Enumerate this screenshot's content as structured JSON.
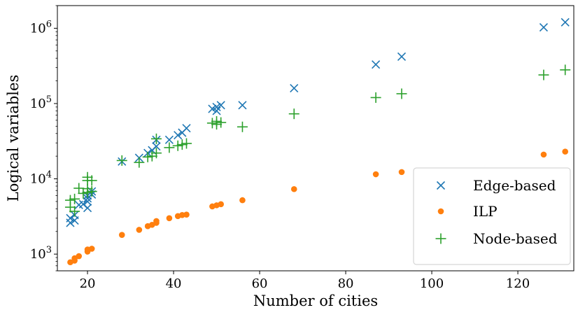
{
  "chart_data": {
    "type": "scatter",
    "xlabel": "Number of cities",
    "ylabel": "Logical variables",
    "xlim": [
      13,
      133
    ],
    "ylim": [
      600,
      2000000
    ],
    "y_scale": "log",
    "grid": false,
    "legend_position": "bottom-right",
    "x_ticks": [
      20,
      40,
      60,
      80,
      100,
      120
    ],
    "x_tick_labels": [
      "20",
      "40",
      "60",
      "80",
      "100",
      "120"
    ],
    "y_ticks": [
      1000,
      10000,
      100000,
      1000000
    ],
    "y_tick_labels": [
      {
        "base": "10",
        "exp": "3"
      },
      {
        "base": "10",
        "exp": "4"
      },
      {
        "base": "10",
        "exp": "5"
      },
      {
        "base": "10",
        "exp": "6"
      }
    ],
    "series": [
      {
        "name": "Edge-based",
        "marker": "x",
        "color": "#1f77b4",
        "points": [
          [
            16,
            2600
          ],
          [
            16,
            3000
          ],
          [
            17,
            2800
          ],
          [
            17,
            3300
          ],
          [
            18,
            4500
          ],
          [
            19,
            4600
          ],
          [
            20,
            4100
          ],
          [
            20,
            5000
          ],
          [
            20,
            5500
          ],
          [
            20,
            6000
          ],
          [
            21,
            6200
          ],
          [
            21,
            6800
          ],
          [
            28,
            17000
          ],
          [
            32,
            19000
          ],
          [
            34,
            22000
          ],
          [
            35,
            24000
          ],
          [
            36,
            27000
          ],
          [
            36,
            33000
          ],
          [
            39,
            33000
          ],
          [
            41,
            38000
          ],
          [
            42,
            41000
          ],
          [
            43,
            47000
          ],
          [
            49,
            85000
          ],
          [
            50,
            80000
          ],
          [
            50,
            90000
          ],
          [
            51,
            95000
          ],
          [
            56,
            95000
          ],
          [
            68,
            160000
          ],
          [
            87,
            330000
          ],
          [
            93,
            420000
          ],
          [
            126,
            1030000
          ],
          [
            131,
            1200000
          ]
        ]
      },
      {
        "name": "ILP",
        "marker": "circle",
        "color": "#ff7f0e",
        "points": [
          [
            16,
            780
          ],
          [
            17,
            820
          ],
          [
            17,
            880
          ],
          [
            18,
            940
          ],
          [
            20,
            1080
          ],
          [
            20,
            1150
          ],
          [
            21,
            1180
          ],
          [
            28,
            1800
          ],
          [
            32,
            2100
          ],
          [
            34,
            2350
          ],
          [
            35,
            2450
          ],
          [
            36,
            2600
          ],
          [
            36,
            2750
          ],
          [
            39,
            3000
          ],
          [
            41,
            3200
          ],
          [
            42,
            3300
          ],
          [
            43,
            3350
          ],
          [
            49,
            4300
          ],
          [
            50,
            4450
          ],
          [
            51,
            4600
          ],
          [
            56,
            5200
          ],
          [
            68,
            7300
          ],
          [
            87,
            11500
          ],
          [
            93,
            12300
          ],
          [
            126,
            21000
          ],
          [
            131,
            23000
          ]
        ]
      },
      {
        "name": "Node-based",
        "marker": "plus",
        "color": "#2ca02c",
        "points": [
          [
            16,
            4200
          ],
          [
            16,
            5200
          ],
          [
            17,
            5400
          ],
          [
            17,
            3700
          ],
          [
            18,
            7500
          ],
          [
            19,
            6400
          ],
          [
            20,
            6600
          ],
          [
            20,
            9500
          ],
          [
            20,
            10500
          ],
          [
            20,
            7400
          ],
          [
            21,
            9500
          ],
          [
            21,
            6800
          ],
          [
            28,
            17500
          ],
          [
            32,
            16500
          ],
          [
            34,
            19500
          ],
          [
            35,
            20000
          ],
          [
            36,
            22000
          ],
          [
            36,
            34000
          ],
          [
            39,
            26000
          ],
          [
            41,
            27500
          ],
          [
            42,
            28500
          ],
          [
            43,
            29500
          ],
          [
            49,
            55000
          ],
          [
            50,
            53000
          ],
          [
            50,
            58000
          ],
          [
            51,
            56000
          ],
          [
            56,
            49000
          ],
          [
            68,
            73000
          ],
          [
            87,
            120000
          ],
          [
            93,
            135000
          ],
          [
            126,
            240000
          ],
          [
            131,
            280000
          ]
        ]
      }
    ]
  }
}
